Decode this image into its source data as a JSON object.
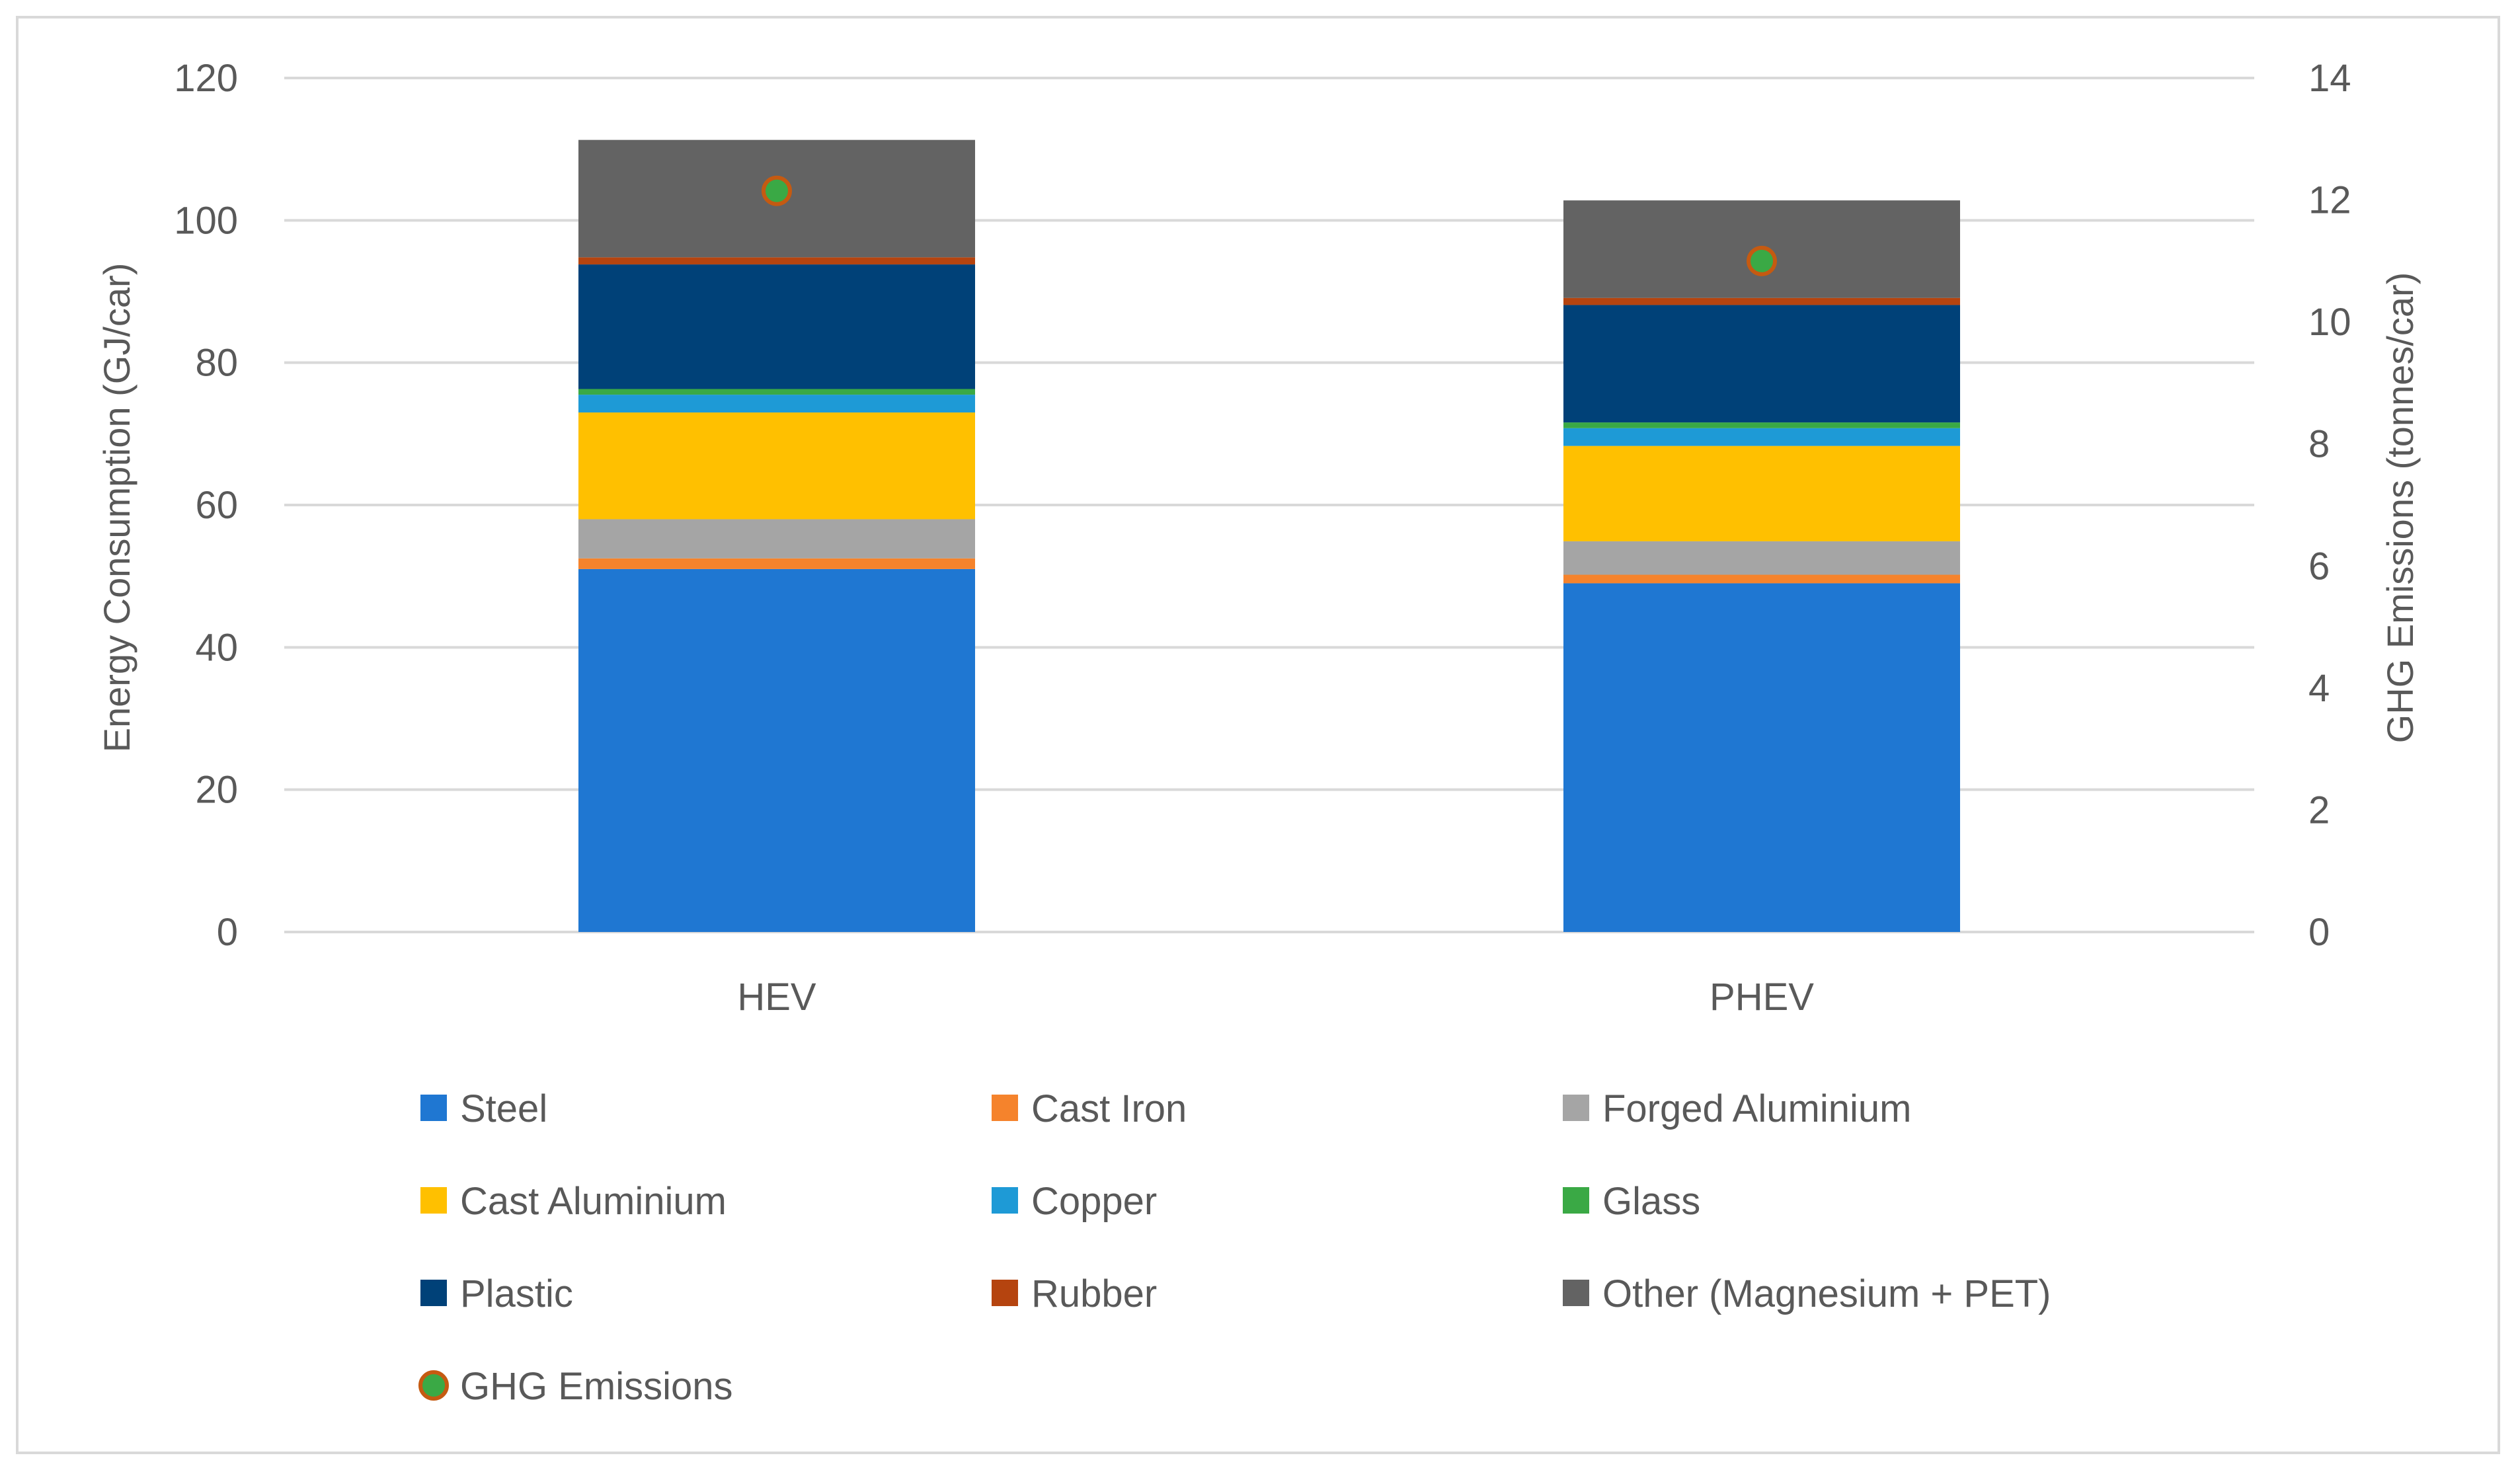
{
  "chart_data": {
    "type": "bar",
    "stacked": true,
    "categories": [
      "HEV",
      "PHEV"
    ],
    "series": [
      {
        "name": "Steel",
        "color": "#1f77d2",
        "values": [
          51.0,
          49.0
        ]
      },
      {
        "name": "Cast Iron",
        "color": "#f5832c",
        "values": [
          1.5,
          1.2
        ]
      },
      {
        "name": "Forged Aluminium",
        "color": "#a5a5a5",
        "values": [
          5.5,
          4.7
        ]
      },
      {
        "name": "Cast Aluminium",
        "color": "#ffc000",
        "values": [
          15.0,
          13.4
        ]
      },
      {
        "name": "Copper",
        "color": "#1e9ad6",
        "values": [
          2.5,
          2.5
        ]
      },
      {
        "name": "Glass",
        "color": "#3aa945",
        "values": [
          0.8,
          0.8
        ]
      },
      {
        "name": "Plastic",
        "color": "#004178",
        "values": [
          17.5,
          16.5
        ]
      },
      {
        "name": "Rubber",
        "color": "#b5440f",
        "values": [
          1.0,
          1.0
        ]
      },
      {
        "name": "Other (Magnesium + PET)",
        "color": "#636363",
        "values": [
          16.5,
          13.7
        ]
      }
    ],
    "line_series": {
      "name": "GHG Emissions",
      "axis": "secondary",
      "values": [
        12.15,
        11.0
      ],
      "marker_color": "#3aa945",
      "marker_edge": "#c55a11"
    },
    "ylabel": "Energy Consumption (GJ/car)",
    "y2label": "GHG Emissions (tonnes/car)",
    "ylim": [
      0,
      120
    ],
    "y2lim": [
      0,
      14
    ],
    "yticks": [
      "0",
      "20",
      "40",
      "60",
      "80",
      "100",
      "120"
    ],
    "y2ticks": [
      "0",
      "2",
      "4",
      "6",
      "8",
      "10",
      "12",
      "14"
    ],
    "grid": true,
    "legend": "bottom"
  }
}
